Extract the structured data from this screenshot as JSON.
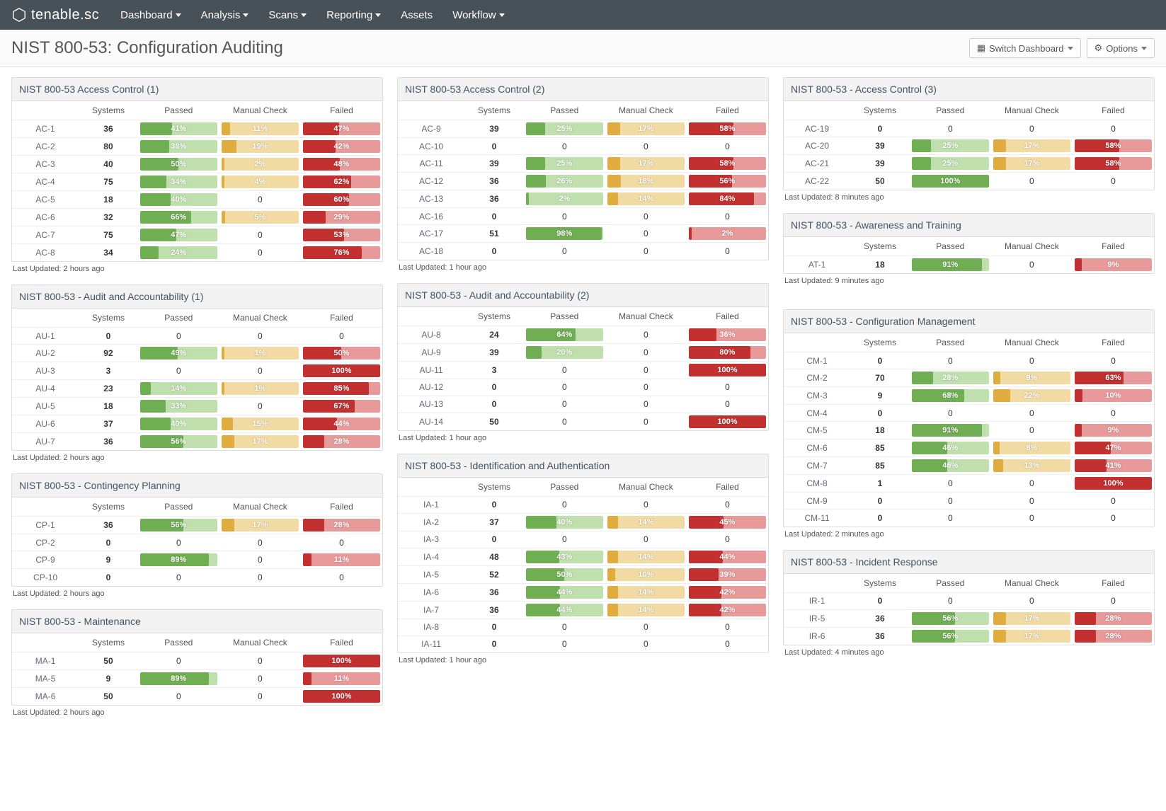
{
  "brand": "tenable.sc",
  "nav": [
    "Dashboard",
    "Analysis",
    "Scans",
    "Reporting",
    "Assets",
    "Workflow"
  ],
  "nav_caret": [
    true,
    true,
    true,
    true,
    false,
    true
  ],
  "page_title": "NIST 800-53: Configuration Auditing",
  "btn_switch": "Switch Dashboard",
  "btn_options": "Options",
  "columns_header": [
    "",
    "Systems",
    "Passed",
    "Manual Check",
    "Failed"
  ],
  "colors": {
    "pass_fill": "#6fae52",
    "pass_track": "#bfe0ad",
    "manual_fill": "#e0ab3f",
    "manual_track": "#f2dba3",
    "fail_fill": "#c23030",
    "fail_track": "#e89a9a"
  },
  "panels": [
    [
      {
        "title": "NIST 800-53 Access Control (1)",
        "updated": "Last Updated: 2 hours ago",
        "rows": [
          {
            "id": "AC-1",
            "sys": 36,
            "p": 41,
            "m": 11,
            "f": 47
          },
          {
            "id": "AC-2",
            "sys": 80,
            "p": 38,
            "m": 19,
            "f": 42
          },
          {
            "id": "AC-3",
            "sys": 40,
            "p": 50,
            "m": 2,
            "f": 48
          },
          {
            "id": "AC-4",
            "sys": 75,
            "p": 34,
            "m": 4,
            "f": 62
          },
          {
            "id": "AC-5",
            "sys": 18,
            "p": 40,
            "m": 0,
            "f": 60
          },
          {
            "id": "AC-6",
            "sys": 32,
            "p": 66,
            "m": 5,
            "f": 29
          },
          {
            "id": "AC-7",
            "sys": 75,
            "p": 47,
            "m": 0,
            "f": 53
          },
          {
            "id": "AC-8",
            "sys": 34,
            "p": 24,
            "m": 0,
            "f": 76
          }
        ]
      },
      {
        "title": "NIST 800-53 - Audit and Accountability (1)",
        "updated": "Last Updated: 2 hours ago",
        "rows": [
          {
            "id": "AU-1",
            "sys": 0,
            "p": 0,
            "m": 0,
            "f": 0
          },
          {
            "id": "AU-2",
            "sys": 92,
            "p": 49,
            "m": 1,
            "f": 50
          },
          {
            "id": "AU-3",
            "sys": 3,
            "p": 0,
            "m": 0,
            "f": 100
          },
          {
            "id": "AU-4",
            "sys": 23,
            "p": 14,
            "m": 1,
            "f": 85
          },
          {
            "id": "AU-5",
            "sys": 18,
            "p": 33,
            "m": 0,
            "f": 67
          },
          {
            "id": "AU-6",
            "sys": 37,
            "p": 40,
            "m": 15,
            "f": 44
          },
          {
            "id": "AU-7",
            "sys": 36,
            "p": 56,
            "m": 17,
            "f": 28
          }
        ]
      },
      {
        "title": "NIST 800-53 - Contingency Planning",
        "updated": "Last Updated: 2 hours ago",
        "rows": [
          {
            "id": "CP-1",
            "sys": 36,
            "p": 56,
            "m": 17,
            "f": 28
          },
          {
            "id": "CP-2",
            "sys": 0,
            "p": 0,
            "m": 0,
            "f": 0
          },
          {
            "id": "CP-9",
            "sys": 9,
            "p": 89,
            "m": 0,
            "f": 11
          },
          {
            "id": "CP-10",
            "sys": 0,
            "p": 0,
            "m": 0,
            "f": 0
          }
        ]
      },
      {
        "title": "NIST 800-53 - Maintenance",
        "updated": "Last Updated: 2 hours ago",
        "rows": [
          {
            "id": "MA-1",
            "sys": 50,
            "p": 0,
            "m": 0,
            "f": 100
          },
          {
            "id": "MA-5",
            "sys": 9,
            "p": 89,
            "m": 0,
            "f": 11
          },
          {
            "id": "MA-6",
            "sys": 50,
            "p": 0,
            "m": 0,
            "f": 100
          }
        ]
      }
    ],
    [
      {
        "title": "NIST 800-53 Access Control (2)",
        "updated": "Last Updated: 1 hour ago",
        "rows": [
          {
            "id": "AC-9",
            "sys": 39,
            "p": 25,
            "m": 17,
            "f": 58
          },
          {
            "id": "AC-10",
            "sys": 0,
            "p": 0,
            "m": 0,
            "f": 0
          },
          {
            "id": "AC-11",
            "sys": 39,
            "p": 25,
            "m": 17,
            "f": 58
          },
          {
            "id": "AC-12",
            "sys": 36,
            "p": 26,
            "m": 18,
            "f": 56
          },
          {
            "id": "AC-13",
            "sys": 36,
            "p": 2,
            "m": 14,
            "f": 84
          },
          {
            "id": "AC-16",
            "sys": 0,
            "p": 0,
            "m": 0,
            "f": 0
          },
          {
            "id": "AC-17",
            "sys": 51,
            "p": 98,
            "m": 0,
            "f": 2
          },
          {
            "id": "AC-18",
            "sys": 0,
            "p": 0,
            "m": 0,
            "f": 0
          }
        ]
      },
      {
        "title": "NIST 800-53 - Audit and Accountability (2)",
        "updated": "Last Updated: 1 hour ago",
        "rows": [
          {
            "id": "AU-8",
            "sys": 24,
            "p": 64,
            "m": 0,
            "f": 36
          },
          {
            "id": "AU-9",
            "sys": 39,
            "p": 20,
            "m": 0,
            "f": 80
          },
          {
            "id": "AU-11",
            "sys": 3,
            "p": 0,
            "m": 0,
            "f": 100
          },
          {
            "id": "AU-12",
            "sys": 0,
            "p": 0,
            "m": 0,
            "f": 0
          },
          {
            "id": "AU-13",
            "sys": 0,
            "p": 0,
            "m": 0,
            "f": 0
          },
          {
            "id": "AU-14",
            "sys": 50,
            "p": 0,
            "m": 0,
            "f": 100
          }
        ]
      },
      {
        "title": "NIST 800-53 - Identification and Authentication",
        "updated": "Last Updated: 1 hour ago",
        "rows": [
          {
            "id": "IA-1",
            "sys": 0,
            "p": 0,
            "m": 0,
            "f": 0
          },
          {
            "id": "IA-2",
            "sys": 37,
            "p": 40,
            "m": 14,
            "f": 45
          },
          {
            "id": "IA-3",
            "sys": 0,
            "p": 0,
            "m": 0,
            "f": 0
          },
          {
            "id": "IA-4",
            "sys": 48,
            "p": 43,
            "m": 14,
            "f": 44
          },
          {
            "id": "IA-5",
            "sys": 52,
            "p": 50,
            "m": 10,
            "f": 39
          },
          {
            "id": "IA-6",
            "sys": 36,
            "p": 44,
            "m": 14,
            "f": 42
          },
          {
            "id": "IA-7",
            "sys": 36,
            "p": 44,
            "m": 14,
            "f": 42
          },
          {
            "id": "IA-8",
            "sys": 0,
            "p": 0,
            "m": 0,
            "f": 0
          },
          {
            "id": "IA-11",
            "sys": 0,
            "p": 0,
            "m": 0,
            "f": 0
          }
        ]
      }
    ],
    [
      {
        "title": "NIST 800-53 - Access Control (3)",
        "updated": "Last Updated: 8 minutes ago",
        "rows": [
          {
            "id": "AC-19",
            "sys": 0,
            "p": 0,
            "m": 0,
            "f": 0
          },
          {
            "id": "AC-20",
            "sys": 39,
            "p": 25,
            "m": 17,
            "f": 58
          },
          {
            "id": "AC-21",
            "sys": 39,
            "p": 25,
            "m": 17,
            "f": 58
          },
          {
            "id": "AC-22",
            "sys": 50,
            "p": 100,
            "m": 0,
            "f": 0
          }
        ]
      },
      {
        "title": "NIST 800-53 - Awareness and Training",
        "updated": "Last Updated: 9 minutes ago",
        "rows": [
          {
            "id": "AT-1",
            "sys": 18,
            "p": 91,
            "m": 0,
            "f": 9
          }
        ],
        "gap_after": true
      },
      {
        "title": "NIST 800-53 - Configuration Management",
        "updated": "Last Updated: 2 minutes ago",
        "rows": [
          {
            "id": "CM-1",
            "sys": 0,
            "p": 0,
            "m": 0,
            "f": 0
          },
          {
            "id": "CM-2",
            "sys": 70,
            "p": 28,
            "m": 9,
            "f": 63
          },
          {
            "id": "CM-3",
            "sys": 9,
            "p": 68,
            "m": 22,
            "f": 10
          },
          {
            "id": "CM-4",
            "sys": 0,
            "p": 0,
            "m": 0,
            "f": 0
          },
          {
            "id": "CM-5",
            "sys": 18,
            "p": 91,
            "m": 0,
            "f": 9
          },
          {
            "id": "CM-6",
            "sys": 85,
            "p": 46,
            "m": 8,
            "f": 47
          },
          {
            "id": "CM-7",
            "sys": 85,
            "p": 46,
            "m": 13,
            "f": 41
          },
          {
            "id": "CM-8",
            "sys": 1,
            "p": 0,
            "m": 0,
            "f": 100
          },
          {
            "id": "CM-9",
            "sys": 0,
            "p": 0,
            "m": 0,
            "f": 0
          },
          {
            "id": "CM-11",
            "sys": 0,
            "p": 0,
            "m": 0,
            "f": 0
          }
        ]
      },
      {
        "title": "NIST 800-53 - Incident Response",
        "updated": "Last Updated: 4 minutes ago",
        "rows": [
          {
            "id": "IR-1",
            "sys": 0,
            "p": 0,
            "m": 0,
            "f": 0
          },
          {
            "id": "IR-5",
            "sys": 36,
            "p": 56,
            "m": 17,
            "f": 28
          },
          {
            "id": "IR-6",
            "sys": 36,
            "p": 56,
            "m": 17,
            "f": 28
          }
        ]
      }
    ]
  ]
}
